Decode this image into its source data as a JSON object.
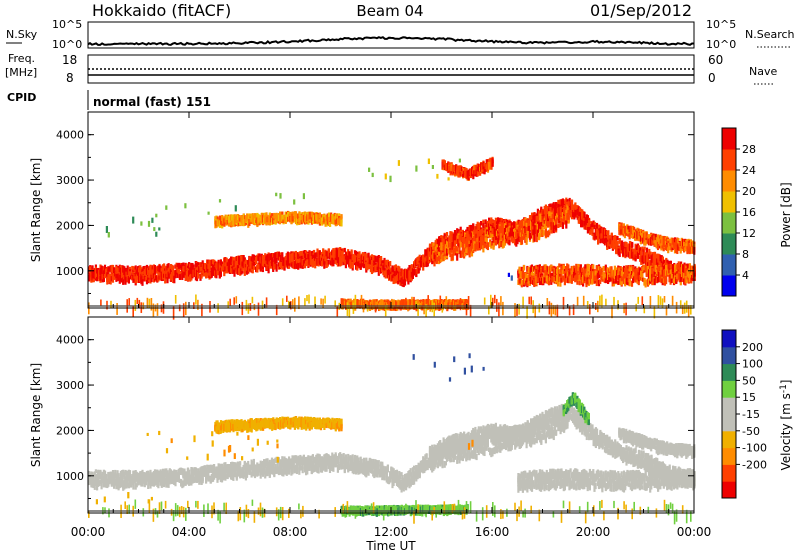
{
  "header": {
    "station": "Hokkaido (fitACF)",
    "beam": "Beam 04",
    "date": "01/Sep/2012"
  },
  "noise_panel": {
    "left_label": "N.Sky",
    "right_label": "N.Search",
    "left_ticks": [
      "10^5",
      "10^0"
    ],
    "right_ticks": [
      "10^5",
      "10^0"
    ]
  },
  "freq_panel": {
    "left_label_line1": "Freq.",
    "left_label_line2": "[MHz]",
    "right_label": "Nave",
    "left_ticks": [
      "18",
      "8"
    ],
    "right_ticks": [
      "60",
      "0"
    ]
  },
  "cpid": {
    "label": "CPID",
    "value": "normal (fast) 151"
  },
  "colors": {
    "power": [
      "#0000ee",
      "#3060b0",
      "#2e8b57",
      "#7cc040",
      "#f0c000",
      "#ff8c00",
      "#ff4000",
      "#ee0000"
    ],
    "velocity": [
      "#ee0000",
      "#ff4000",
      "#ff8c00",
      "#f0b000",
      "#c0c0b8",
      "#c0c0b8",
      "#70d040",
      "#2e8b57",
      "#3050a0",
      "#1010c0"
    ],
    "ground_scatter": "#c0c0b8"
  },
  "chart_data": [
    {
      "type": "heatmap",
      "name": "power",
      "ylabel": "Slant Range [km]",
      "xlim": [
        0,
        24
      ],
      "ylim": [
        180,
        4500
      ],
      "yticks": [
        "1000",
        "2000",
        "3000",
        "4000"
      ],
      "colorbar": {
        "label": "Power [dB]",
        "ticks": [
          "4",
          "8",
          "12",
          "16",
          "20",
          "24",
          "28"
        ],
        "range": [
          0,
          32
        ]
      },
      "bands": [
        {
          "x": [
            0,
            2,
            4,
            6,
            8,
            10,
            11.5,
            12.5,
            14,
            16,
            17,
            18,
            19,
            20,
            21,
            22,
            23,
            24
          ],
          "y": [
            1000,
            980,
            1050,
            1200,
            1300,
            1380,
            1200,
            900,
            1700,
            2050,
            1950,
            2300,
            2500,
            1950,
            1600,
            1400,
            1100,
            1000
          ],
          "width": 300,
          "value": 28
        },
        {
          "x": [
            13.5,
            16,
            18,
            19
          ],
          "y": [
            1450,
            1800,
            2050,
            2350
          ],
          "width": 450,
          "value": 26
        },
        {
          "x": [
            17,
            19,
            21,
            24
          ],
          "y": [
            950,
            1000,
            950,
            1000
          ],
          "width": 350,
          "value": 26
        },
        {
          "x": [
            10,
            12,
            13,
            15
          ],
          "y": [
            350,
            320,
            330,
            330
          ],
          "width": 100,
          "value": 24
        },
        {
          "x": [
            5,
            8,
            10
          ],
          "y": [
            2150,
            2250,
            2200
          ],
          "width": 150,
          "value": 22
        },
        {
          "x": [
            14,
            15,
            16
          ],
          "y": [
            3400,
            3200,
            3450
          ],
          "width": 150,
          "value": 27
        },
        {
          "x": [
            21,
            22,
            23,
            24
          ],
          "y": [
            2000,
            1800,
            1650,
            1600
          ],
          "width": 200,
          "value": 25
        }
      ],
      "patches": [
        {
          "x": [
            0.5,
            3.5
          ],
          "y": [
            1800,
            2150
          ],
          "value": 12
        },
        {
          "x": [
            1,
            3
          ],
          "y": [
            2000,
            2300
          ],
          "value": 10
        },
        {
          "x": [
            3,
            6
          ],
          "y": [
            2300,
            2600
          ],
          "value": 14
        },
        {
          "x": [
            11,
            15
          ],
          "y": [
            3050,
            3500
          ],
          "value": 16
        },
        {
          "x": [
            6,
            9
          ],
          "y": [
            2550,
            2750
          ],
          "value": 14
        },
        {
          "x": [
            16.5,
            18
          ],
          "y": [
            800,
            1000
          ],
          "value": 6
        }
      ]
    },
    {
      "type": "heatmap",
      "name": "velocity",
      "xlabel": "Time UT",
      "ylabel": "Slant Range [km]",
      "xlim": [
        0,
        24
      ],
      "ylim": [
        180,
        4500
      ],
      "xticks": [
        "00:00",
        "04:00",
        "08:00",
        "12:00",
        "16:00",
        "20:00",
        "00:00"
      ],
      "yticks": [
        "1000",
        "2000",
        "3000",
        "4000"
      ],
      "colorbar": {
        "label": "Velocity [m s^-1]",
        "ticks": [
          "200",
          "100",
          "50",
          "15",
          "-15",
          "-50",
          "-100",
          "-200"
        ],
        "range": [
          -250,
          250
        ]
      },
      "bands": [
        {
          "x": [
            0,
            2,
            4,
            6,
            8,
            10,
            11.5,
            12.5,
            14,
            16,
            17,
            18,
            19,
            20,
            21,
            22,
            23,
            24
          ],
          "y": [
            1000,
            980,
            1050,
            1200,
            1300,
            1380,
            1200,
            900,
            1700,
            2050,
            1950,
            2300,
            2500,
            1950,
            1600,
            1400,
            1100,
            1000
          ],
          "width": 300,
          "value": 0
        },
        {
          "x": [
            13.5,
            16,
            18,
            19
          ],
          "y": [
            1450,
            1800,
            2050,
            2350
          ],
          "width": 450,
          "value": 0
        },
        {
          "x": [
            17,
            19,
            21,
            24
          ],
          "y": [
            950,
            1000,
            950,
            1000
          ],
          "width": 350,
          "value": 0
        },
        {
          "x": [
            5,
            8,
            10
          ],
          "y": [
            2150,
            2250,
            2200
          ],
          "width": 150,
          "value": -40
        },
        {
          "x": [
            18.8,
            19.2,
            19.8
          ],
          "y": [
            2500,
            2800,
            2300
          ],
          "width": 180,
          "value": 45
        },
        {
          "x": [
            10,
            13,
            15
          ],
          "y": [
            300,
            320,
            330
          ],
          "width": 90,
          "value": 40
        },
        {
          "x": [
            21,
            22,
            23,
            24
          ],
          "y": [
            2000,
            1800,
            1650,
            1600
          ],
          "width": 200,
          "value": 0
        }
      ],
      "patches": [
        {
          "x": [
            14,
            16
          ],
          "y": [
            3150,
            3450
          ],
          "value": 180
        },
        {
          "x": [
            12.5,
            15.5
          ],
          "y": [
            3500,
            3700
          ],
          "value": 120
        },
        {
          "x": [
            2,
            8
          ],
          "y": [
            1400,
            2000
          ],
          "value": -45
        },
        {
          "x": [
            14.5,
            15.5
          ],
          "y": [
            1700,
            2000
          ],
          "value": -60
        },
        {
          "x": [
            0,
            3
          ],
          "y": [
            450,
            700
          ],
          "value": -40
        }
      ]
    }
  ]
}
